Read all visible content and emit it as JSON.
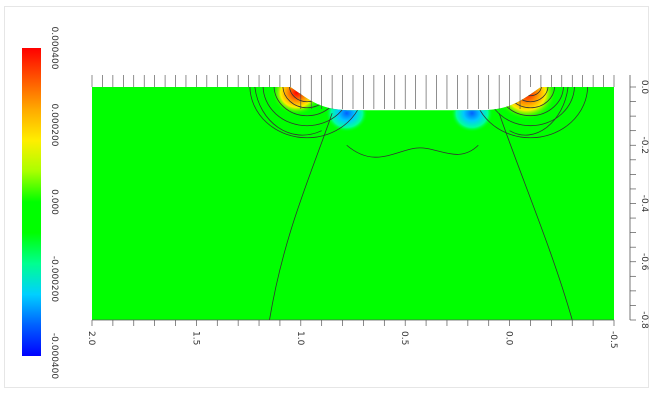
{
  "chart_data": {
    "type": "heatmap",
    "title": "",
    "xlabel": "",
    "ylabel": "",
    "xlim": [
      2.0,
      -0.5
    ],
    "ylim": [
      -0.8,
      0.0
    ],
    "x_ticks": [
      {
        "value": 2.0,
        "label": "2.0"
      },
      {
        "value": 1.5,
        "label": "1.5"
      },
      {
        "value": 1.0,
        "label": "1.0"
      },
      {
        "value": 0.5,
        "label": "0.5"
      },
      {
        "value": 0.0,
        "label": "0.0"
      },
      {
        "value": -0.5,
        "label": "-0.5"
      }
    ],
    "y_ticks": [
      {
        "value": 0.0,
        "label": "0.0"
      },
      {
        "value": -0.2,
        "label": "-0.2"
      },
      {
        "value": -0.4,
        "label": "-0.4"
      },
      {
        "value": -0.6,
        "label": "-0.6"
      },
      {
        "value": -0.8,
        "label": "-0.8"
      }
    ],
    "colorbar": {
      "range": [
        -0.0004,
        0.0004
      ],
      "ticks": [
        {
          "value": 0.0004,
          "label": "0.000400"
        },
        {
          "value": 0.0002,
          "label": "0.000200"
        },
        {
          "value": 0.0,
          "label": "0.000"
        },
        {
          "value": -0.0002,
          "label": "-0.000200"
        },
        {
          "value": -0.0004,
          "label": "-0.000400"
        }
      ],
      "colors": [
        "#0000ff",
        "#0060ff",
        "#00d0ff",
        "#00ff90",
        "#00ff00",
        "#00ff00",
        "#aaff00",
        "#ffee00",
        "#ffaa00",
        "#ff5500",
        "#ff0000"
      ]
    },
    "boundary_notch": {
      "description_points": [
        [
          1.05,
          0.0
        ],
        [
          0.95,
          -0.05
        ],
        [
          0.75,
          -0.08
        ],
        [
          0.15,
          -0.08
        ],
        [
          -0.05,
          -0.05
        ],
        [
          -0.15,
          0.0
        ]
      ]
    },
    "hot_spots": [
      {
        "x": 1.02,
        "y": -0.02,
        "value": 0.00028
      },
      {
        "x": 0.78,
        "y": -0.09,
        "value": -0.0002
      },
      {
        "x": 0.18,
        "y": -0.09,
        "value": -0.0002
      },
      {
        "x": -0.08,
        "y": -0.02,
        "value": 0.0004
      }
    ],
    "grid": false,
    "legend": "left"
  }
}
